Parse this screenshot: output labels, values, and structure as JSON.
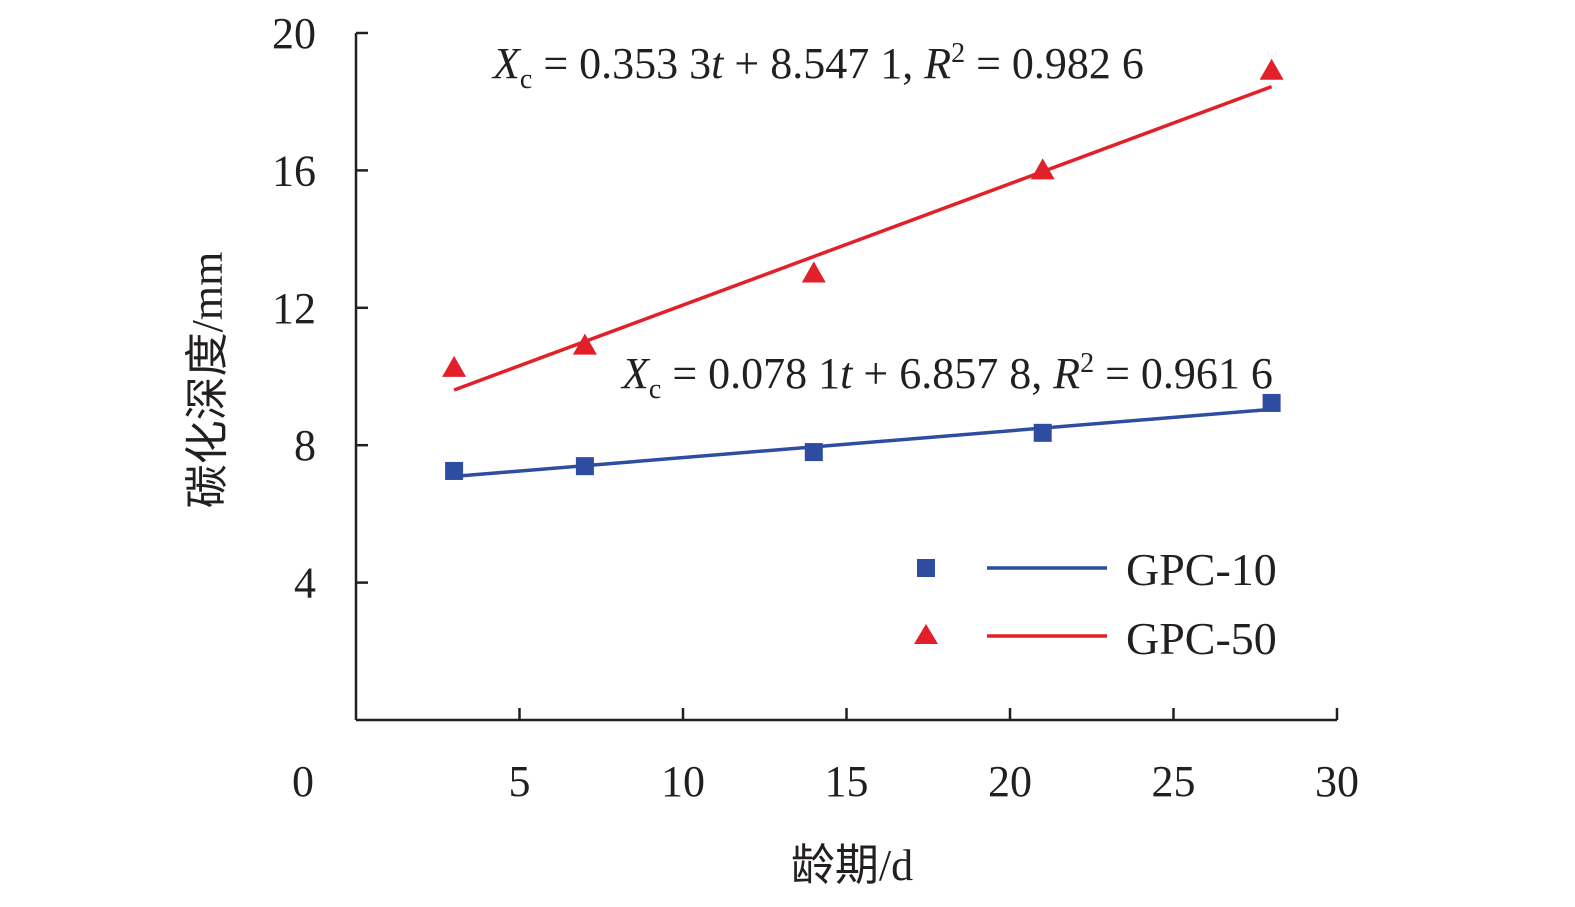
{
  "chart_data": {
    "type": "scatter",
    "xlabel": "龄期/d",
    "ylabel": "碳化深度/mm",
    "xlim": [
      0,
      30
    ],
    "ylim": [
      0,
      20
    ],
    "x_ticks": [
      "0",
      "5",
      "10",
      "15",
      "20",
      "25",
      "30"
    ],
    "y_ticks": [
      "4",
      "8",
      "12",
      "16",
      "20"
    ],
    "x_tick_values": [
      0,
      5,
      10,
      15,
      20,
      25,
      30
    ],
    "y_tick_values": [
      4,
      8,
      12,
      16,
      20
    ],
    "grid": false,
    "legend_position": "bottom-right",
    "series": [
      {
        "name": "GPC-10",
        "marker": "square",
        "color": "#2e4da0",
        "x": [
          3,
          7,
          14,
          21,
          28
        ],
        "y": [
          7.25,
          7.39,
          7.8,
          8.36,
          9.23
        ],
        "fit": {
          "slope": 0.0781,
          "intercept": 6.8578,
          "x_range": [
            3,
            28
          ]
        },
        "equation": {
          "var": "X",
          "sub": "c",
          "eq1": " = 0.078 1",
          "t": "t",
          "eq2": " + 6.857 8, ",
          "R": "R",
          "sup": "2",
          "eq3": " = 0.961 6"
        }
      },
      {
        "name": "GPC-50",
        "marker": "triangle",
        "color": "#e2202a",
        "x": [
          3,
          7,
          14,
          21,
          28
        ],
        "y": [
          10.25,
          10.9,
          13.0,
          16.0,
          18.9
        ],
        "fit": {
          "slope": 0.3533,
          "intercept": 8.5471,
          "x_range": [
            3,
            28
          ]
        },
        "equation": {
          "var": "X",
          "sub": "c",
          "eq1": " = 0.353 3",
          "t": "t",
          "eq2": " + 8.547 1, ",
          "R": "R",
          "sup": "2",
          "eq3": " = 0.982 6"
        }
      }
    ]
  }
}
